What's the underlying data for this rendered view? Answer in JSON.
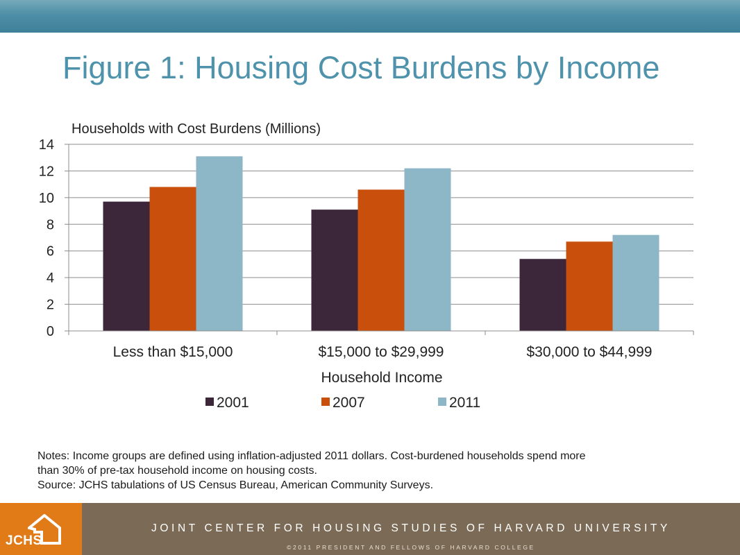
{
  "slide": {
    "title": "Figure 1: Housing Cost Burdens by Income",
    "notes": [
      "Notes: Income groups are defined using inflation-adjusted 2011 dollars.  Cost-burdened households spend more",
      "than 30% of pre-tax household income on housing costs.",
      "Source: JCHS tabulations of US Census Bureau, American Community Surveys."
    ],
    "footer": {
      "logo_text": "JCHS",
      "org_name": "JOINT CENTER FOR HOUSING STUDIES OF HARVARD UNIVERSITY",
      "copyright": "©2011 PRESIDENT AND FELLOWS OF HARVARD COLLEGE"
    },
    "colors": {
      "accent": "#4f92ab",
      "footer_brown": "#7b6a55",
      "logo_orange": "#e07b18"
    },
    "logo_icon": "house-icon"
  },
  "chart_data": {
    "type": "bar",
    "title": "",
    "ylabel": "Households with Cost Burdens (Millions)",
    "xlabel": "Household Income",
    "categories": [
      "Less than $15,000",
      "$15,000 to $29,999",
      "$30,000 to $44,999"
    ],
    "series": [
      {
        "name": "2001",
        "color": "#3c2639",
        "values": [
          9.7,
          9.1,
          5.4
        ]
      },
      {
        "name": "2007",
        "color": "#c84f0c",
        "values": [
          10.8,
          10.6,
          6.7
        ]
      },
      {
        "name": "2011",
        "color": "#8db6c6",
        "values": [
          13.1,
          12.2,
          7.2
        ]
      }
    ],
    "ylim": [
      0,
      14
    ],
    "yticks": [
      0,
      2,
      4,
      6,
      8,
      10,
      12,
      14
    ],
    "grid": true,
    "legend": "bottom"
  }
}
